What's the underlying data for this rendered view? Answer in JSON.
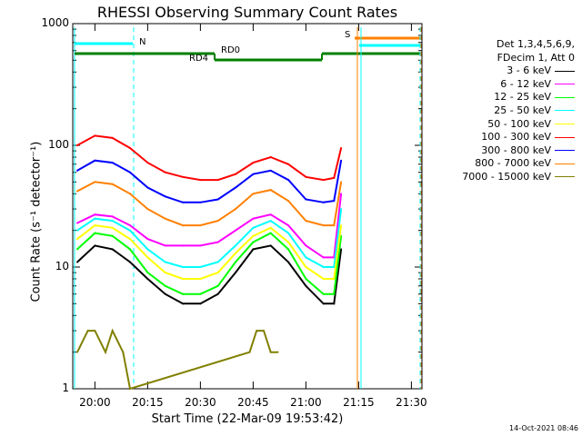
{
  "chart_data": {
    "type": "line",
    "title": "RHESSI Observing Summary Count Rates",
    "xlabel": "Start Time (22-Mar-09 19:53:42)",
    "ylabel": "Count Rate (s⁻¹ detector⁻¹)",
    "y_scale": "log",
    "ylim": [
      1,
      1000
    ],
    "y_ticks": [
      "1",
      "10",
      "100",
      "1000"
    ],
    "x_range": [
      "19:53:42",
      "21:33:00"
    ],
    "x_ticks": [
      "20:00",
      "20:15",
      "20:30",
      "20:45",
      "21:00",
      "21:15",
      "21:30"
    ],
    "legend_header": [
      "Det 1,3,4,5,6,9,",
      "FDecim 1, Att 0"
    ],
    "series": [
      {
        "name": "3 - 6 keV",
        "color": "#000000",
        "x": [
          "19:55",
          "20:00",
          "20:05",
          "20:10",
          "20:15",
          "20:20",
          "20:25",
          "20:30",
          "20:35",
          "20:40",
          "20:45",
          "20:50",
          "20:55",
          "21:00",
          "21:05",
          "21:08",
          "21:10"
        ],
        "values": [
          11,
          15,
          14,
          11,
          8,
          6,
          5,
          5,
          6,
          9,
          14,
          15,
          11,
          7,
          5,
          5,
          14
        ]
      },
      {
        "name": "6 - 12 keV",
        "color": "#ff00ff",
        "x": [
          "19:55",
          "20:00",
          "20:05",
          "20:10",
          "20:15",
          "20:20",
          "20:25",
          "20:30",
          "20:35",
          "20:40",
          "20:45",
          "20:50",
          "20:55",
          "21:00",
          "21:05",
          "21:08",
          "21:10"
        ],
        "values": [
          23,
          27,
          26,
          22,
          17,
          15,
          15,
          15,
          16,
          20,
          25,
          27,
          22,
          15,
          12,
          12,
          40
        ]
      },
      {
        "name": "12 - 25 keV",
        "color": "#00ff00",
        "x": [
          "19:55",
          "20:00",
          "20:05",
          "20:10",
          "20:15",
          "20:20",
          "20:25",
          "20:30",
          "20:35",
          "20:40",
          "20:45",
          "20:50",
          "20:55",
          "21:00",
          "21:05",
          "21:08",
          "21:10"
        ],
        "values": [
          14,
          19,
          18,
          14,
          9,
          7,
          6,
          6,
          7,
          11,
          16,
          19,
          14,
          8,
          6,
          6,
          18
        ]
      },
      {
        "name": "25 - 50 keV",
        "color": "#00ffff",
        "x": [
          "19:55",
          "20:00",
          "20:05",
          "20:10",
          "20:15",
          "20:20",
          "20:25",
          "20:30",
          "20:35",
          "20:40",
          "20:45",
          "20:50",
          "20:55",
          "21:00",
          "21:05",
          "21:08",
          "21:10"
        ],
        "values": [
          20,
          25,
          24,
          20,
          14,
          11,
          10,
          10,
          11,
          15,
          21,
          24,
          19,
          12,
          10,
          10,
          30
        ]
      },
      {
        "name": "50 - 100 keV",
        "color": "#ffff00",
        "x": [
          "19:55",
          "20:00",
          "20:05",
          "20:10",
          "20:15",
          "20:20",
          "20:25",
          "20:30",
          "20:35",
          "20:40",
          "20:45",
          "20:50",
          "20:55",
          "21:00",
          "21:05",
          "21:08",
          "21:10"
        ],
        "values": [
          17,
          22,
          21,
          17,
          12,
          9,
          8,
          8,
          9,
          13,
          18,
          21,
          16,
          10,
          8,
          8,
          22
        ]
      },
      {
        "name": "100 - 300 keV",
        "color": "#ff0000",
        "x": [
          "19:55",
          "20:00",
          "20:05",
          "20:10",
          "20:15",
          "20:20",
          "20:25",
          "20:30",
          "20:35",
          "20:40",
          "20:45",
          "20:50",
          "20:55",
          "21:00",
          "21:05",
          "21:08",
          "21:10"
        ],
        "values": [
          100,
          120,
          115,
          95,
          72,
          60,
          55,
          52,
          52,
          58,
          72,
          80,
          70,
          55,
          52,
          54,
          95
        ]
      },
      {
        "name": "300 - 800 keV",
        "color": "#0000ff",
        "x": [
          "19:55",
          "20:00",
          "20:05",
          "20:10",
          "20:15",
          "20:20",
          "20:25",
          "20:30",
          "20:35",
          "20:40",
          "20:45",
          "20:50",
          "20:55",
          "21:00",
          "21:05",
          "21:08",
          "21:10"
        ],
        "values": [
          62,
          75,
          72,
          60,
          45,
          38,
          34,
          34,
          36,
          45,
          58,
          62,
          52,
          36,
          34,
          35,
          75
        ]
      },
      {
        "name": "800 - 7000 keV",
        "color": "#ff8000",
        "x": [
          "19:55",
          "20:00",
          "20:05",
          "20:10",
          "20:15",
          "20:20",
          "20:25",
          "20:30",
          "20:35",
          "20:40",
          "20:45",
          "20:50",
          "20:55",
          "21:00",
          "21:05",
          "21:08",
          "21:10"
        ],
        "values": [
          42,
          50,
          48,
          40,
          30,
          25,
          22,
          22,
          24,
          30,
          40,
          43,
          35,
          24,
          22,
          22,
          50
        ]
      },
      {
        "name": "7000 - 15000 keV",
        "color": "#808000",
        "x": [
          "19:55",
          "19:58",
          "20:00",
          "20:03",
          "20:05",
          "20:08",
          "20:10",
          "20:44",
          "20:46",
          "20:48",
          "20:50",
          "20:52"
        ],
        "values": [
          2,
          3,
          3,
          2,
          3,
          2,
          1,
          2,
          3,
          3,
          2,
          2
        ]
      }
    ],
    "annotations": {
      "N_label": "N",
      "S_label": "S",
      "RD0_label": "RD0",
      "RD4_label": "RD4"
    }
  },
  "footer": {
    "timestamp": "14-Oct-2021 08:46"
  }
}
